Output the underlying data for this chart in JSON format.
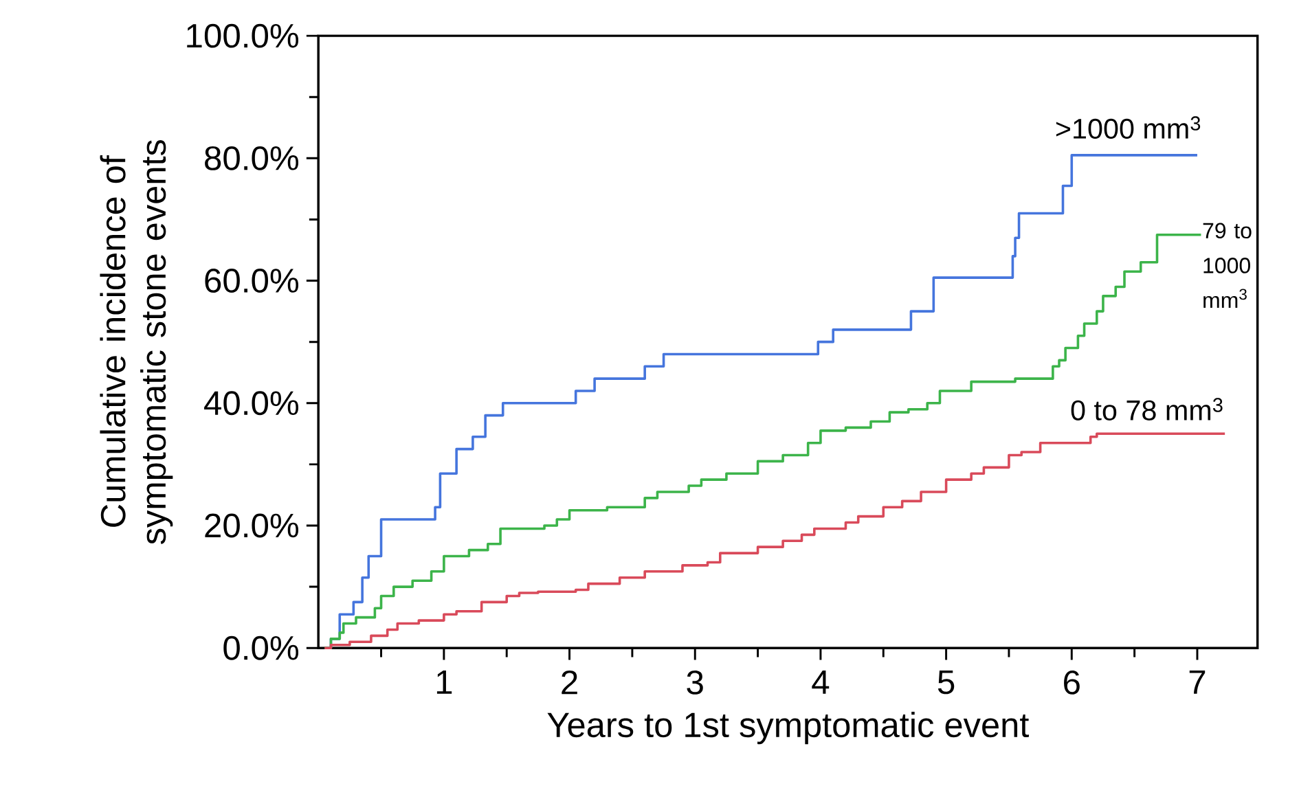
{
  "chart_data": {
    "type": "step",
    "xlabel": "Years to 1st symptomatic event",
    "ylabel": "Cumulative incidence of symptomatic stone events",
    "xlim": [
      0,
      7.48
    ],
    "ylim": [
      0,
      100
    ],
    "xticks": [
      {
        "value": 0.5,
        "label": null
      },
      1,
      {
        "value": 1.5,
        "label": null
      },
      2,
      {
        "value": 2.5,
        "label": null
      },
      3,
      {
        "value": 3.5,
        "label": null
      },
      4,
      {
        "value": 4.5,
        "label": null
      },
      5,
      {
        "value": 5.5,
        "label": null
      },
      6,
      {
        "value": 6.5,
        "label": null
      },
      7
    ],
    "yticks": [
      {
        "value": 0,
        "label": "0.0%"
      },
      {
        "value": 10,
        "label": null
      },
      {
        "value": 20,
        "label": "20.0%"
      },
      {
        "value": 30,
        "label": null
      },
      {
        "value": 40,
        "label": "40.0%"
      },
      {
        "value": 50,
        "label": null
      },
      {
        "value": 60,
        "label": "60.0%"
      },
      {
        "value": 70,
        "label": null
      },
      {
        "value": 80,
        "label": "80.0%"
      },
      {
        "value": 90,
        "label": null
      },
      {
        "value": 100,
        "label": "100.0%"
      }
    ],
    "grid": false,
    "legend": false,
    "marker": "none",
    "line_style": "solid",
    "series": [
      {
        "name": ">1000 mm$^{3}$",
        "color": "#4575dd",
        "x": [
          0.07,
          0.1,
          0.17,
          0.28,
          0.35,
          0.4,
          0.5,
          0.93,
          0.97,
          1.1,
          1.23,
          1.33,
          1.47,
          2.05,
          2.2,
          2.6,
          2.75,
          3.98,
          4.1,
          4.72,
          4.9,
          5.53,
          5.55,
          5.58,
          5.93,
          6.0,
          7.0
        ],
        "values": [
          0,
          1.5,
          5.5,
          7.5,
          11.5,
          15,
          21,
          23,
          28.5,
          32.5,
          34.5,
          38,
          40,
          42,
          44,
          46,
          48,
          50,
          52,
          55,
          60.5,
          64,
          67,
          71,
          75.5,
          80.5,
          80.5
        ]
      },
      {
        "name": "79 to 1000 mm$^{3}$",
        "color": "#3cb44a",
        "x": [
          0.05,
          0.1,
          0.17,
          0.2,
          0.3,
          0.45,
          0.5,
          0.6,
          0.75,
          0.9,
          1.0,
          1.2,
          1.35,
          1.45,
          1.8,
          1.9,
          2.0,
          2.3,
          2.6,
          2.7,
          2.95,
          3.05,
          3.25,
          3.5,
          3.7,
          3.9,
          4.0,
          4.2,
          4.4,
          4.55,
          4.7,
          4.85,
          4.95,
          5.2,
          5.55,
          5.85,
          5.9,
          5.95,
          6.05,
          6.1,
          6.2,
          6.25,
          6.35,
          6.42,
          6.55,
          6.68,
          7.03
        ],
        "values": [
          0,
          1.5,
          2.5,
          4,
          5,
          6.5,
          8.5,
          10,
          11,
          12.5,
          15,
          16,
          17,
          19.5,
          20,
          21,
          22.5,
          23,
          24.5,
          25.5,
          26.5,
          27.5,
          28.5,
          30.5,
          31.5,
          33.5,
          35.5,
          36,
          37,
          38.5,
          39,
          40,
          42,
          43.5,
          44,
          46,
          47,
          49,
          51,
          53,
          55,
          57.5,
          59,
          61.5,
          63,
          67.5,
          67.5
        ]
      },
      {
        "name": "0 to 78 mm$^{3}$",
        "color": "#d94a5a",
        "x": [
          0.05,
          0.1,
          0.25,
          0.42,
          0.55,
          0.63,
          0.8,
          1.0,
          1.1,
          1.3,
          1.5,
          1.6,
          1.75,
          2.05,
          2.15,
          2.4,
          2.6,
          2.9,
          3.1,
          3.2,
          3.5,
          3.7,
          3.85,
          3.95,
          4.2,
          4.3,
          4.5,
          4.65,
          4.8,
          5.0,
          5.2,
          5.3,
          5.5,
          5.6,
          5.75,
          6.15,
          6.2,
          7.22
        ],
        "values": [
          0,
          0.5,
          1,
          2,
          3,
          4,
          4.5,
          5.5,
          6,
          7.5,
          8.5,
          9,
          9.2,
          9.5,
          10.5,
          11.5,
          12.5,
          13.5,
          14,
          15.5,
          16.5,
          17.5,
          18.5,
          19.5,
          20.5,
          21.5,
          23,
          24,
          25.5,
          27.5,
          28.5,
          29.5,
          31.5,
          32,
          33.5,
          34.5,
          35,
          35
        ]
      }
    ]
  }
}
